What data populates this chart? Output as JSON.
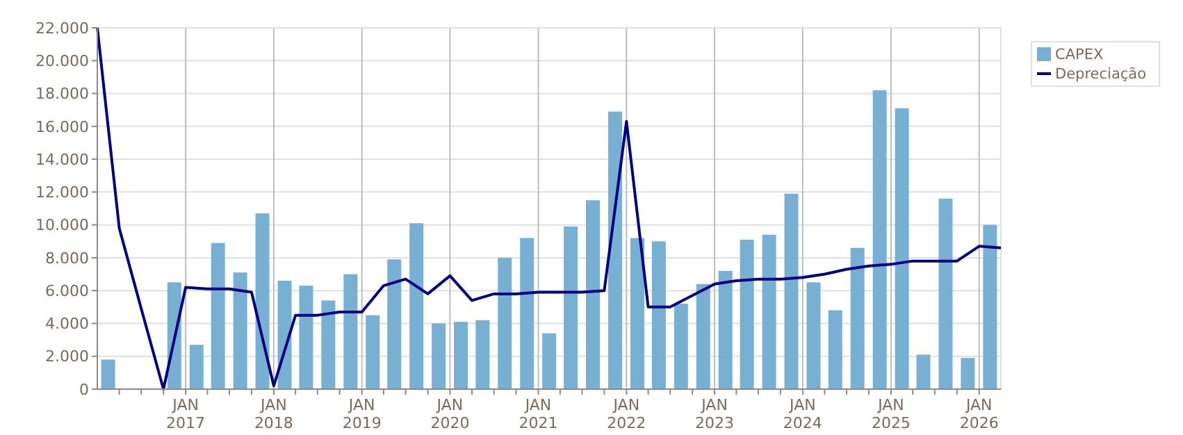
{
  "chart_data": {
    "type": "bar",
    "xlim": [
      "2016-01-01",
      "2026-04-01"
    ],
    "xticks": [
      {
        "value": "2016-04-01",
        "label": null
      },
      {
        "value": "2016-07-01",
        "label": null
      },
      {
        "value": "2016-10-01",
        "label": null
      },
      {
        "value": "2017-01-01",
        "label": "JAN 2017"
      },
      {
        "value": "2017-04-01",
        "label": null
      },
      {
        "value": "2017-07-01",
        "label": null
      },
      {
        "value": "2017-10-01",
        "label": null
      },
      {
        "value": "2018-01-01",
        "label": "JAN 2018"
      },
      {
        "value": "2018-04-01",
        "label": null
      },
      {
        "value": "2018-07-01",
        "label": null
      },
      {
        "value": "2018-10-01",
        "label": null
      },
      {
        "value": "2019-01-01",
        "label": "JAN 2019"
      },
      {
        "value": "2019-04-01",
        "label": null
      },
      {
        "value": "2019-07-01",
        "label": null
      },
      {
        "value": "2019-10-01",
        "label": null
      },
      {
        "value": "2020-01-01",
        "label": "JAN 2020"
      },
      {
        "value": "2020-04-01",
        "label": null
      },
      {
        "value": "2020-07-01",
        "label": null
      },
      {
        "value": "2020-10-01",
        "label": null
      },
      {
        "value": "2021-01-01",
        "label": "JAN 2021"
      },
      {
        "value": "2021-04-01",
        "label": null
      },
      {
        "value": "2021-07-01",
        "label": null
      },
      {
        "value": "2021-10-01",
        "label": null
      },
      {
        "value": "2022-01-01",
        "label": "JAN 2022"
      },
      {
        "value": "2022-04-01",
        "label": null
      },
      {
        "value": "2022-07-01",
        "label": null
      },
      {
        "value": "2022-10-01",
        "label": null
      },
      {
        "value": "2023-01-01",
        "label": "JAN 2023"
      },
      {
        "value": "2023-04-01",
        "label": null
      },
      {
        "value": "2023-07-01",
        "label": null
      },
      {
        "value": "2023-10-01",
        "label": null
      },
      {
        "value": "2024-01-01",
        "label": "JAN 2024"
      },
      {
        "value": "2024-04-01",
        "label": null
      },
      {
        "value": "2024-07-01",
        "label": null
      },
      {
        "value": "2024-10-01",
        "label": null
      },
      {
        "value": "2025-01-01",
        "label": "JAN 2025"
      },
      {
        "value": "2025-04-01",
        "label": null
      },
      {
        "value": "2025-07-01",
        "label": null
      },
      {
        "value": "2025-10-01",
        "label": null
      },
      {
        "value": "2026-01-01",
        "label": "JAN 2026"
      }
    ],
    "ylim": [
      0,
      22000
    ],
    "yticks": [
      0,
      {
        "value": 2000,
        "label": "2.000"
      },
      {
        "value": 4000,
        "label": "4.000"
      },
      {
        "value": 6000,
        "label": "6.000"
      },
      {
        "value": 8000,
        "label": "8.000"
      },
      {
        "value": 10000,
        "label": "10.000"
      },
      {
        "value": 12000,
        "label": "12.000"
      },
      {
        "value": 14000,
        "label": "14.000"
      },
      {
        "value": 16000,
        "label": "16.000"
      },
      {
        "value": 18000,
        "label": "18.000"
      },
      {
        "value": 20000,
        "label": "20.000"
      },
      {
        "value": 22000,
        "label": "22.000"
      }
    ],
    "grid": true,
    "legend": "top right",
    "series": [
      {
        "name": "CAPEX",
        "color": "#77b0d3",
        "x": [
          "2016-02-15",
          "2016-05-15",
          "2016-08-15",
          "2016-11-15",
          "2017-02-15",
          "2017-05-15",
          "2017-08-15",
          "2017-11-15",
          "2018-02-15",
          "2018-05-15",
          "2018-08-15",
          "2018-11-15",
          "2019-02-15",
          "2019-05-15",
          "2019-08-15",
          "2019-11-15",
          "2020-02-15",
          "2020-05-15",
          "2020-08-15",
          "2020-11-15",
          "2021-02-15",
          "2021-05-15",
          "2021-08-15",
          "2021-11-15",
          "2022-02-15",
          "2022-05-15",
          "2022-08-15",
          "2022-11-15",
          "2023-02-15",
          "2023-05-15",
          "2023-08-15",
          "2023-11-15",
          "2024-02-15",
          "2024-05-15",
          "2024-08-15",
          "2024-11-15",
          "2025-02-15",
          "2025-05-15",
          "2025-08-15",
          "2025-11-15",
          "2026-02-15"
        ],
        "values": [
          1800,
          0,
          0,
          6500,
          2700,
          8900,
          7100,
          10700,
          6600,
          6300,
          5400,
          7000,
          4500,
          7900,
          10100,
          4000,
          4100,
          4200,
          8000,
          9200,
          3400,
          9900,
          11500,
          16900,
          9200,
          9000,
          5200,
          6400,
          7200,
          9100,
          9400,
          11900,
          6500,
          4800,
          8600,
          18200,
          17100,
          2100,
          11600,
          1900,
          10000
        ]
      },
      {
        "name": "Depreciação",
        "type": "line",
        "color": "#000080",
        "x": [
          "2016-01-01",
          "2016-04-01",
          "2016-07-01",
          "2016-10-01",
          "2017-01-01",
          "2017-04-01",
          "2017-07-01",
          "2017-10-01",
          "2018-01-01",
          "2018-04-01",
          "2018-07-01",
          "2018-10-01",
          "2019-01-01",
          "2019-04-01",
          "2019-07-01",
          "2019-10-01",
          "2020-01-01",
          "2020-04-01",
          "2020-07-01",
          "2020-10-01",
          "2021-01-01",
          "2021-04-01",
          "2021-07-01",
          "2021-10-01",
          "2022-01-01",
          "2022-04-01",
          "2022-07-01",
          "2022-10-01",
          "2023-01-01",
          "2023-04-01",
          "2023-07-01",
          "2023-10-01",
          "2024-01-01",
          "2024-04-01",
          "2024-07-01",
          "2024-10-01",
          "2025-01-01",
          "2025-04-01",
          "2025-07-01",
          "2025-10-01",
          "2026-01-01",
          "2026-04-01"
        ],
        "values": [
          22000,
          9800,
          4900,
          0,
          6200,
          6100,
          6100,
          5900,
          200,
          4500,
          4500,
          4700,
          4700,
          6300,
          6700,
          5800,
          6900,
          5400,
          5800,
          5800,
          5900,
          5900,
          5900,
          6000,
          16300,
          5000,
          5000,
          5700,
          6400,
          6600,
          6700,
          6700,
          6800,
          7000,
          7300,
          7500,
          7600,
          7800,
          7800,
          7800,
          8700,
          8600
        ]
      }
    ]
  }
}
